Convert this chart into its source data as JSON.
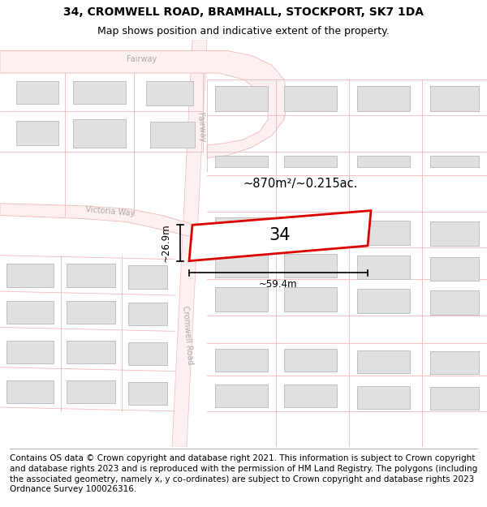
{
  "title": "34, CROMWELL ROAD, BRAMHALL, STOCKPORT, SK7 1DA",
  "subtitle": "Map shows position and indicative extent of the property.",
  "footer": "Contains OS data © Crown copyright and database right 2021. This information is subject to Crown copyright and database rights 2023 and is reproduced with the permission of HM Land Registry. The polygons (including the associated geometry, namely x, y co-ordinates) are subject to Crown copyright and database rights 2023 Ordnance Survey 100026316.",
  "bg_color": "#ffffff",
  "road_color": "#f2b8b8",
  "road_fill": "#fdf0f0",
  "building_color": "#e0e0e0",
  "building_edge": "#c0c0c0",
  "highlight_color": "#dd0000",
  "area_label": "~870m²/~0.215ac.",
  "property_label": "34",
  "dim_width": "~59.4m",
  "dim_height": "~26.9m",
  "street_color": "#aaaaaa",
  "title_fontsize": 10,
  "subtitle_fontsize": 9,
  "footer_fontsize": 7.5
}
